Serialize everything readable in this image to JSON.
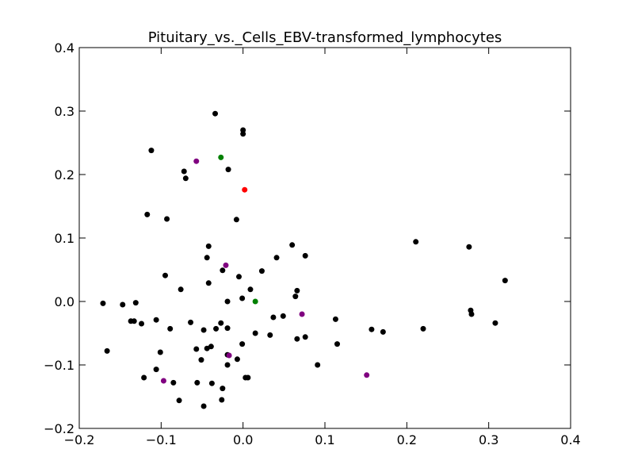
{
  "chart_data": {
    "type": "scatter",
    "title": "Pituitary_vs._Cells_EBV-transformed_lymphocytes",
    "xlabel": "",
    "ylabel": "",
    "xlim": [
      -0.2,
      0.4
    ],
    "ylim": [
      -0.2,
      0.4
    ],
    "xticks": [
      -0.2,
      -0.1,
      0.0,
      0.1,
      0.2,
      0.3,
      0.4
    ],
    "yticks": [
      -0.2,
      -0.1,
      0.0,
      0.1,
      0.2,
      0.3,
      0.4
    ],
    "xtick_labels": [
      "−0.2",
      "−0.1",
      "0.0",
      "0.1",
      "0.2",
      "0.3",
      "0.4"
    ],
    "ytick_labels": [
      "−0.2",
      "−0.1",
      "0.0",
      "0.1",
      "0.2",
      "0.3",
      "0.4"
    ],
    "grid": false,
    "legend": "none",
    "colors": {
      "black": "#000000",
      "purple": "#800080",
      "green": "#008000",
      "red": "#ff0000"
    },
    "series": [
      {
        "color": "#000000",
        "points": [
          [
            -0.034,
            0.296
          ],
          [
            0.0,
            0.27
          ],
          [
            0.0,
            0.264
          ],
          [
            -0.112,
            0.238
          ],
          [
            -0.018,
            0.208
          ],
          [
            -0.072,
            0.205
          ],
          [
            -0.07,
            0.194
          ],
          [
            -0.117,
            0.137
          ],
          [
            -0.093,
            0.13
          ],
          [
            -0.008,
            0.129
          ],
          [
            0.211,
            0.094
          ],
          [
            0.276,
            0.086
          ],
          [
            -0.042,
            0.087
          ],
          [
            0.06,
            0.089
          ],
          [
            -0.044,
            0.069
          ],
          [
            0.041,
            0.069
          ],
          [
            0.076,
            0.072
          ],
          [
            0.023,
            0.048
          ],
          [
            -0.025,
            0.049
          ],
          [
            -0.095,
            0.041
          ],
          [
            -0.005,
            0.039
          ],
          [
            0.32,
            0.033
          ],
          [
            -0.042,
            0.029
          ],
          [
            -0.076,
            0.019
          ],
          [
            0.009,
            0.019
          ],
          [
            0.066,
            0.017
          ],
          [
            0.064,
            0.008
          ],
          [
            -0.001,
            0.005
          ],
          [
            -0.171,
            -0.003
          ],
          [
            -0.147,
            -0.005
          ],
          [
            -0.131,
            -0.002
          ],
          [
            -0.019,
            0.0
          ],
          [
            0.278,
            -0.014
          ],
          [
            0.279,
            -0.02
          ],
          [
            0.037,
            -0.025
          ],
          [
            0.049,
            -0.023
          ],
          [
            0.113,
            -0.028
          ],
          [
            -0.106,
            -0.029
          ],
          [
            -0.133,
            -0.031
          ],
          [
            -0.137,
            -0.031
          ],
          [
            -0.124,
            -0.035
          ],
          [
            -0.064,
            -0.033
          ],
          [
            -0.027,
            -0.034
          ],
          [
            0.308,
            -0.034
          ],
          [
            -0.089,
            -0.043
          ],
          [
            -0.033,
            -0.043
          ],
          [
            -0.019,
            -0.042
          ],
          [
            -0.048,
            -0.045
          ],
          [
            0.157,
            -0.044
          ],
          [
            0.171,
            -0.048
          ],
          [
            0.22,
            -0.043
          ],
          [
            0.015,
            -0.05
          ],
          [
            0.033,
            -0.053
          ],
          [
            0.076,
            -0.056
          ],
          [
            0.066,
            -0.059
          ],
          [
            -0.001,
            -0.067
          ],
          [
            0.115,
            -0.067
          ],
          [
            -0.039,
            -0.071
          ],
          [
            -0.044,
            -0.074
          ],
          [
            -0.057,
            -0.075
          ],
          [
            -0.166,
            -0.078
          ],
          [
            -0.101,
            -0.08
          ],
          [
            -0.019,
            -0.084
          ],
          [
            -0.007,
            -0.091
          ],
          [
            -0.051,
            -0.092
          ],
          [
            -0.019,
            -0.1
          ],
          [
            0.091,
            -0.1
          ],
          [
            -0.106,
            -0.107
          ],
          [
            -0.121,
            -0.12
          ],
          [
            0.003,
            -0.12
          ],
          [
            0.006,
            -0.12
          ],
          [
            -0.085,
            -0.128
          ],
          [
            -0.056,
            -0.128
          ],
          [
            -0.038,
            -0.129
          ],
          [
            -0.025,
            -0.137
          ],
          [
            -0.078,
            -0.156
          ],
          [
            -0.026,
            -0.155
          ],
          [
            -0.048,
            -0.165
          ]
        ]
      },
      {
        "color": "#800080",
        "points": [
          [
            -0.057,
            0.221
          ],
          [
            -0.021,
            0.057
          ],
          [
            0.072,
            -0.02
          ],
          [
            -0.017,
            -0.085
          ],
          [
            0.151,
            -0.116
          ],
          [
            -0.097,
            -0.125
          ]
        ]
      },
      {
        "color": "#008000",
        "points": [
          [
            -0.027,
            0.227
          ],
          [
            0.015,
            0.0
          ]
        ]
      },
      {
        "color": "#ff0000",
        "points": [
          [
            0.002,
            0.176
          ]
        ]
      }
    ]
  }
}
